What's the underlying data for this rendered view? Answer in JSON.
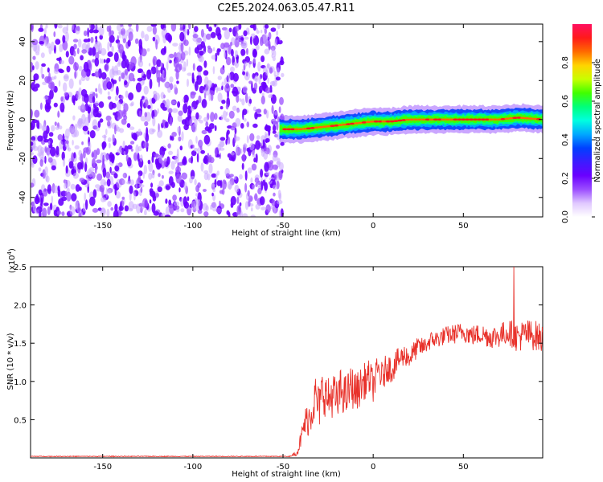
{
  "figure": {
    "title": "C2E5.2024.063.05.47.R11"
  },
  "colors": {
    "snr_line": "#e8312a",
    "noise_primary": "#7f00ff",
    "frame": "#000000",
    "colormap": [
      "#ffffff",
      "#e0c8ff",
      "#9b4dff",
      "#6a00ff",
      "#3c1cff",
      "#0040ff",
      "#00a8ff",
      "#00ffe0",
      "#00ff7a",
      "#40ff00",
      "#c8ff00",
      "#ffd400",
      "#ff6a00",
      "#ff1a1a",
      "#ff1060"
    ]
  },
  "chart_data": [
    {
      "id": "spectrogram",
      "type": "heatmap",
      "xlabel": "Height of straight line (km)",
      "ylabel": "Frequency (Hz)",
      "xlim": [
        -190,
        94
      ],
      "ylim": [
        -50,
        49
      ],
      "xticks": [
        -150,
        -100,
        -50,
        0,
        50
      ],
      "yticks": [
        -40,
        -20,
        0,
        20,
        40
      ],
      "grid": false,
      "colorbar": {
        "label": "Normalized spectral amplitude",
        "range": [
          0,
          1
        ],
        "ticks": [
          "0.0",
          "0.2",
          "0.4",
          "0.6",
          "0.8"
        ],
        "tick_values": [
          0,
          0.2,
          0.4,
          0.6,
          0.8
        ]
      },
      "noise_region_x": [
        -190,
        -52
      ],
      "signal_track": {
        "x": [
          -52,
          -40,
          -30,
          -20,
          -10,
          0,
          10,
          20,
          30,
          40,
          50,
          60,
          70,
          80,
          94
        ],
        "frequency": [
          -5,
          -5,
          -4,
          -3,
          -2,
          -1,
          -1,
          0,
          0,
          0,
          0,
          0,
          0,
          1,
          0
        ]
      }
    },
    {
      "id": "snr",
      "type": "line",
      "xlabel": "Height of straight line (km)",
      "ylabel": "SNR (10 * v/v)",
      "y_multiplier": "(x10",
      "y_multiplier_exp": "4",
      "y_multiplier_close": ")",
      "xlim": [
        -190,
        94
      ],
      "ylim": [
        0,
        2.5
      ],
      "xticks": [
        -150,
        -100,
        -50,
        0,
        50
      ],
      "yticks": [
        0.5,
        1.0,
        1.5,
        2.0,
        2.5
      ],
      "ytick_labels": [
        "0.5",
        "1.0",
        "1.5",
        "2.0",
        "2.5"
      ],
      "grid": false,
      "series": [
        {
          "color": "#e8312a",
          "x": [
            -190,
            -150,
            -100,
            -50,
            -45,
            -42,
            -40,
            -38,
            -35,
            -32,
            -30,
            -28,
            -25,
            -22,
            -20,
            -18,
            -15,
            -12,
            -10,
            -8,
            -5,
            -2,
            0,
            3,
            5,
            8,
            10,
            13,
            15,
            18,
            20,
            23,
            25,
            28,
            30,
            33,
            35,
            38,
            40,
            45,
            50,
            55,
            60,
            65,
            70,
            75,
            78,
            80,
            85,
            90,
            94
          ],
          "y": [
            0.02,
            0.02,
            0.02,
            0.02,
            0.03,
            0.08,
            0.25,
            0.45,
            0.55,
            0.8,
            0.65,
            0.9,
            0.75,
            0.85,
            0.7,
            0.9,
            0.8,
            0.95,
            0.85,
            0.9,
            1.0,
            1.05,
            0.95,
            1.15,
            1.05,
            1.2,
            1.15,
            1.25,
            1.3,
            1.35,
            1.3,
            1.4,
            1.45,
            1.45,
            1.5,
            1.55,
            1.55,
            1.58,
            1.6,
            1.62,
            1.65,
            1.6,
            1.62,
            1.58,
            1.6,
            1.65,
            1.6,
            1.58,
            1.62,
            1.6,
            1.55
          ],
          "noise_amplitude": [
            0.0,
            0.0,
            0.0,
            0.0,
            0.01,
            0.05,
            0.12,
            0.2,
            0.25,
            0.3,
            0.3,
            0.3,
            0.3,
            0.3,
            0.3,
            0.28,
            0.28,
            0.28,
            0.26,
            0.25,
            0.24,
            0.24,
            0.22,
            0.22,
            0.2,
            0.2,
            0.18,
            0.17,
            0.16,
            0.15,
            0.14,
            0.14,
            0.13,
            0.12,
            0.12,
            0.12,
            0.12,
            0.12,
            0.12,
            0.13,
            0.13,
            0.14,
            0.14,
            0.15,
            0.16,
            0.17,
            0.18,
            0.2,
            0.2,
            0.2,
            0.2
          ],
          "spike": {
            "x": 78,
            "y": 2.5
          }
        }
      ]
    }
  ]
}
